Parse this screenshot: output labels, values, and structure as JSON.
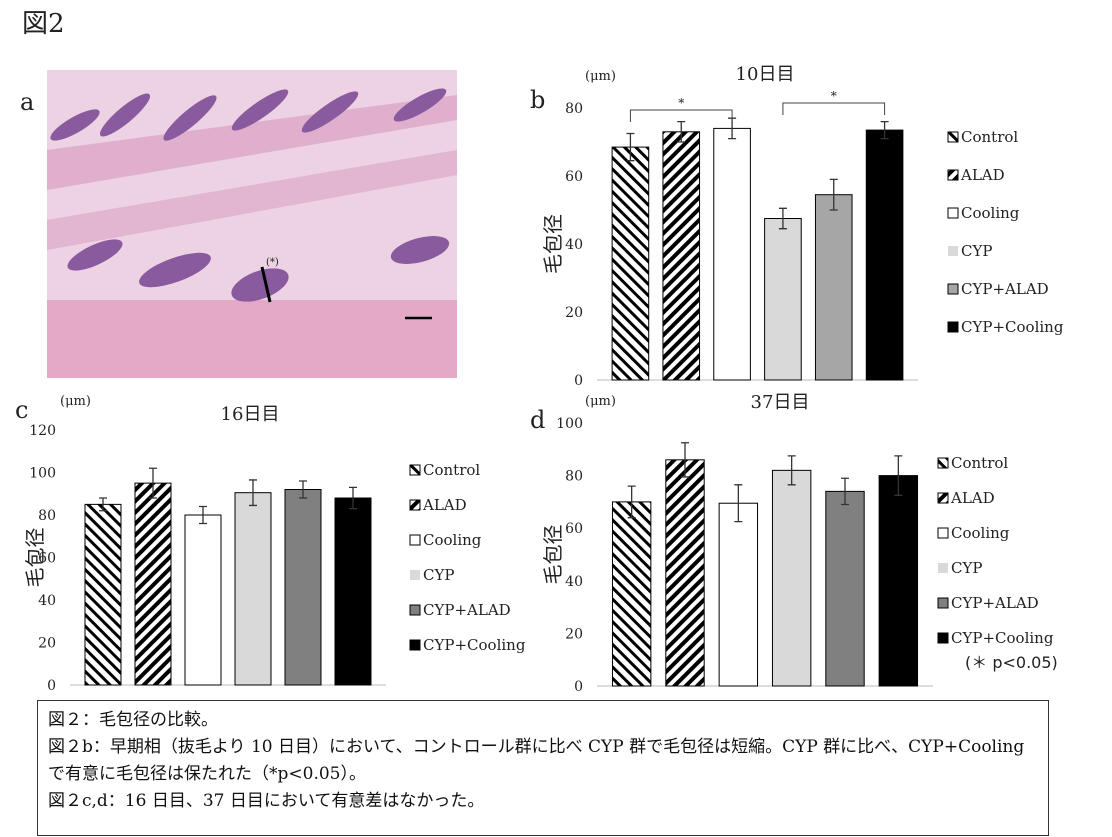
{
  "figure_label": "図2",
  "panels": {
    "a": "a",
    "a_marker": "(*)"
  },
  "chart_data": [
    {
      "type": "bar",
      "panel": "b",
      "title": "10日目",
      "unit": "(μm)",
      "y_label": "毛包径",
      "categories": [
        "Control",
        "ALAD",
        "Cooling",
        "CYP",
        "CYP+ALAD",
        "CYP+Cooling"
      ],
      "values": [
        68.5,
        73,
        74,
        47.5,
        54.5,
        73.5
      ],
      "errors": [
        4,
        3,
        3,
        3,
        4.5,
        2.5
      ],
      "fills": [
        "back-hatch",
        "forward-hatch",
        "#ffffff",
        "#d9d9d9",
        "#a6a6a6",
        "#000000"
      ],
      "ylim": [
        0,
        80
      ],
      "yticks": [
        0,
        20,
        40,
        60,
        80
      ],
      "grid": false,
      "legend": "right",
      "annotations": [
        "*",
        "*"
      ]
    },
    {
      "type": "bar",
      "panel": "c",
      "title": "16日目",
      "unit": "(μm)",
      "y_label": "毛包径",
      "categories": [
        "Control",
        "ALAD",
        "Cooling",
        "CYP",
        "CYP+ALAD",
        "CYP+Cooling"
      ],
      "values": [
        85,
        95,
        80,
        90.5,
        92,
        88
      ],
      "errors": [
        3,
        7,
        4,
        6,
        4,
        5
      ],
      "fills": [
        "back-hatch",
        "forward-hatch",
        "#ffffff",
        "#d9d9d9",
        "#808080",
        "#000000"
      ],
      "ylim": [
        0,
        120
      ],
      "yticks": [
        0,
        20,
        40,
        60,
        80,
        100,
        120
      ],
      "grid": false,
      "legend": "right"
    },
    {
      "type": "bar",
      "panel": "d",
      "title": "37日目",
      "unit": "(μm)",
      "y_label": "毛包径",
      "categories": [
        "Control",
        "ALAD",
        "Cooling",
        "CYP",
        "CYP+ALAD",
        "CYP+Cooling"
      ],
      "values": [
        70,
        86,
        69.5,
        82,
        74,
        80
      ],
      "errors": [
        6,
        6.5,
        7,
        5.5,
        5,
        7.5
      ],
      "fills": [
        "back-hatch",
        "forward-hatch",
        "#ffffff",
        "#d9d9d9",
        "#808080",
        "#000000"
      ],
      "ylim": [
        0,
        100
      ],
      "yticks": [
        0,
        20,
        40,
        60,
        80,
        100
      ],
      "grid": false,
      "legend": "right",
      "footnote": "(＊ p<0.05)"
    }
  ],
  "caption": [
    "図２：毛包径の比較。",
    "図２b：早期相（抜毛より 10 日目）において、コントロール群に比べ CYP 群で毛包径は短縮。CYP 群に比べ、CYP+Cooling で有意に毛包径は保たれた（*p<0.05）。",
    "図２c,d：16 日目、37 日目において有意差はなかった。"
  ]
}
